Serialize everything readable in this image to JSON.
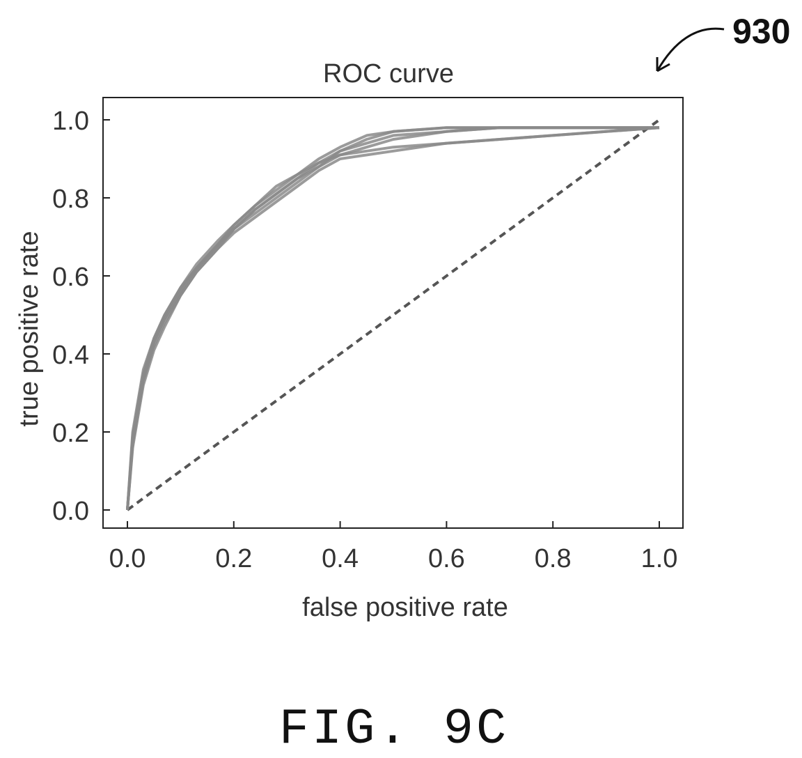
{
  "reference_numeral": "930",
  "caption": "FIG. 9C",
  "chart_data": {
    "type": "line",
    "title": "ROC curve",
    "xlabel": "false positive rate",
    "ylabel": "true positive rate",
    "xlim": [
      0.0,
      1.0
    ],
    "ylim": [
      0.0,
      1.0
    ],
    "xticks": [
      "0.0",
      "0.2",
      "0.4",
      "0.6",
      "0.8",
      "1.0"
    ],
    "yticks": [
      "0.0",
      "0.2",
      "0.4",
      "0.6",
      "0.8",
      "1.0"
    ],
    "grid": false,
    "legend": "none",
    "colors": {
      "curve": "#8a8a8a",
      "reference": "#555555",
      "frame": "#222222"
    },
    "series": [
      {
        "x": [
          0,
          0.01,
          0.03,
          0.05,
          0.07,
          0.1,
          0.13,
          0.17,
          0.2,
          0.24,
          0.28,
          0.32,
          0.36,
          0.4,
          0.45,
          0.5,
          0.6,
          0.7,
          0.8,
          0.9,
          1.0
        ],
        "y": [
          0,
          0.2,
          0.36,
          0.44,
          0.5,
          0.57,
          0.63,
          0.69,
          0.73,
          0.78,
          0.83,
          0.86,
          0.9,
          0.93,
          0.96,
          0.97,
          0.98,
          0.98,
          0.98,
          0.98,
          0.98
        ]
      },
      {
        "x": [
          0,
          0.01,
          0.03,
          0.05,
          0.07,
          0.1,
          0.13,
          0.17,
          0.2,
          0.24,
          0.28,
          0.32,
          0.36,
          0.4,
          0.45,
          0.5,
          0.6,
          0.7,
          0.8,
          0.9,
          1.0
        ],
        "y": [
          0,
          0.17,
          0.33,
          0.42,
          0.48,
          0.55,
          0.61,
          0.67,
          0.72,
          0.77,
          0.81,
          0.85,
          0.89,
          0.92,
          0.94,
          0.96,
          0.97,
          0.98,
          0.98,
          0.98,
          0.98
        ]
      },
      {
        "x": [
          0,
          0.01,
          0.03,
          0.05,
          0.07,
          0.1,
          0.13,
          0.17,
          0.2,
          0.24,
          0.28,
          0.32,
          0.36,
          0.4,
          0.45,
          0.5,
          0.6,
          0.7,
          0.8,
          0.9,
          1.0
        ],
        "y": [
          0,
          0.18,
          0.34,
          0.43,
          0.49,
          0.56,
          0.62,
          0.68,
          0.72,
          0.76,
          0.8,
          0.84,
          0.88,
          0.91,
          0.92,
          0.93,
          0.94,
          0.95,
          0.96,
          0.97,
          0.98
        ]
      },
      {
        "x": [
          0,
          0.01,
          0.03,
          0.05,
          0.07,
          0.1,
          0.13,
          0.17,
          0.2,
          0.24,
          0.28,
          0.32,
          0.36,
          0.4,
          0.45,
          0.5,
          0.6,
          0.7,
          0.8,
          0.9,
          1.0
        ],
        "y": [
          0,
          0.16,
          0.32,
          0.41,
          0.47,
          0.55,
          0.61,
          0.67,
          0.71,
          0.75,
          0.79,
          0.83,
          0.87,
          0.9,
          0.91,
          0.92,
          0.94,
          0.95,
          0.96,
          0.97,
          0.98
        ]
      },
      {
        "x": [
          0,
          0.01,
          0.03,
          0.05,
          0.07,
          0.1,
          0.13,
          0.17,
          0.2,
          0.24,
          0.28,
          0.32,
          0.36,
          0.4,
          0.45,
          0.5,
          0.6,
          0.7,
          0.8,
          0.9,
          1.0
        ],
        "y": [
          0,
          0.19,
          0.35,
          0.44,
          0.5,
          0.57,
          0.62,
          0.68,
          0.73,
          0.78,
          0.82,
          0.86,
          0.89,
          0.91,
          0.93,
          0.95,
          0.97,
          0.98,
          0.98,
          0.98,
          0.98
        ]
      },
      {
        "x": [
          0,
          0.01,
          0.03,
          0.05,
          0.07,
          0.1,
          0.13,
          0.17,
          0.2,
          0.24,
          0.28,
          0.32,
          0.36,
          0.4,
          0.45,
          0.5,
          0.6,
          0.7,
          0.8,
          0.9,
          1.0
        ],
        "y": [
          0,
          0.17,
          0.34,
          0.43,
          0.49,
          0.56,
          0.62,
          0.68,
          0.72,
          0.77,
          0.81,
          0.85,
          0.88,
          0.92,
          0.95,
          0.97,
          0.98,
          0.98,
          0.98,
          0.98,
          0.98
        ]
      }
    ],
    "reference_line": {
      "x": [
        0,
        1
      ],
      "y": [
        0,
        1
      ],
      "style": "dashed"
    }
  }
}
